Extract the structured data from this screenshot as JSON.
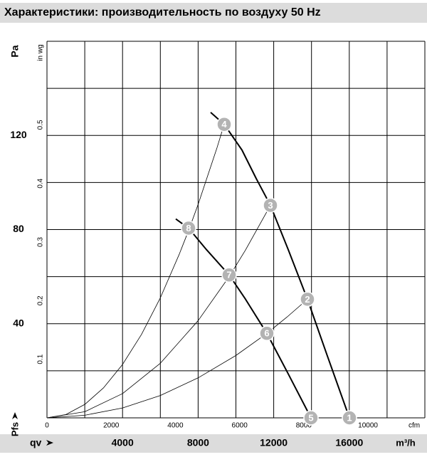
{
  "title": "Характеристики: производительность по воздуху 50 Hz",
  "chart_data": {
    "type": "line",
    "xlabel": "qv",
    "x_unit": "m³/h",
    "ylabel": "Pfs",
    "y_unit": "Pa",
    "xlim": [
      0,
      20000
    ],
    "xticks": [
      4000,
      8000,
      12000,
      16000
    ],
    "ylim": [
      0,
      160
    ],
    "yticks": [
      40,
      80,
      120
    ],
    "xgrid": [
      0,
      2000,
      4000,
      6000,
      8000,
      10000,
      12000,
      14000,
      16000,
      18000,
      20000
    ],
    "ygrid": [
      0,
      20,
      40,
      60,
      80,
      100,
      120,
      140,
      160
    ],
    "x2label": "cfm",
    "x2lim": [
      0,
      11772
    ],
    "x2ticks": [
      0,
      2000,
      4000,
      6000,
      8000,
      10000
    ],
    "y2label": "in wg",
    "y2lim": [
      0,
      0.6426
    ],
    "y2ticks": [
      0.1,
      0.2,
      0.3,
      0.4,
      0.5
    ],
    "series": [
      {
        "color": "#000000",
        "width": 2,
        "x": [
          8663,
          9379,
          10320,
          11073,
          11827,
          12768,
          13785,
          14840,
          16008
        ],
        "y": [
          129.8,
          124.7,
          113.8,
          101.7,
          90.3,
          71.5,
          50.4,
          26.3,
          0
        ]
      },
      {
        "color": "#000000",
        "width": 2,
        "x": [
          6817,
          7495,
          8437,
          9642,
          10508,
          11638,
          12768,
          13974
        ],
        "y": [
          84.5,
          80.6,
          71.5,
          60.7,
          50.4,
          35.9,
          18.7,
          0
        ]
      },
      {
        "color": "#000000",
        "width": 0.8,
        "x": [
          0,
          1000,
          2000,
          3000,
          4000,
          5000,
          6000,
          7000,
          7495,
          8000,
          9000,
          9379
        ],
        "y": [
          0,
          1.4,
          5.7,
          12.8,
          22.7,
          35.4,
          51.0,
          69.5,
          79.6,
          90.7,
          114.8,
          124.7
        ]
      },
      {
        "color": "#000000",
        "width": 0.8,
        "x": [
          0,
          2000,
          4000,
          6000,
          8000,
          9642,
          10500,
          11827
        ],
        "y": [
          0,
          2.6,
          10.3,
          23.2,
          41.3,
          60.0,
          71.2,
          90.3
        ]
      },
      {
        "color": "#000000",
        "width": 0.8,
        "x": [
          0,
          2000,
          4000,
          6000,
          8000,
          10000,
          11638,
          12700,
          13785
        ],
        "y": [
          0,
          1.1,
          4.2,
          9.5,
          17.0,
          26.5,
          35.9,
          42.8,
          50.4
        ]
      }
    ],
    "points": [
      {
        "label": "1",
        "x": 16008,
        "y": 0
      },
      {
        "label": "2",
        "x": 13785,
        "y": 50.4
      },
      {
        "label": "3",
        "x": 11827,
        "y": 90.3
      },
      {
        "label": "4",
        "x": 9379,
        "y": 124.7
      },
      {
        "label": "5",
        "x": 13974,
        "y": 0
      },
      {
        "label": "6",
        "x": 11638,
        "y": 35.9
      },
      {
        "label": "7",
        "x": 9642,
        "y": 60.7
      },
      {
        "label": "8",
        "x": 7495,
        "y": 80.6
      }
    ],
    "point_color": "#b3b3b3"
  }
}
